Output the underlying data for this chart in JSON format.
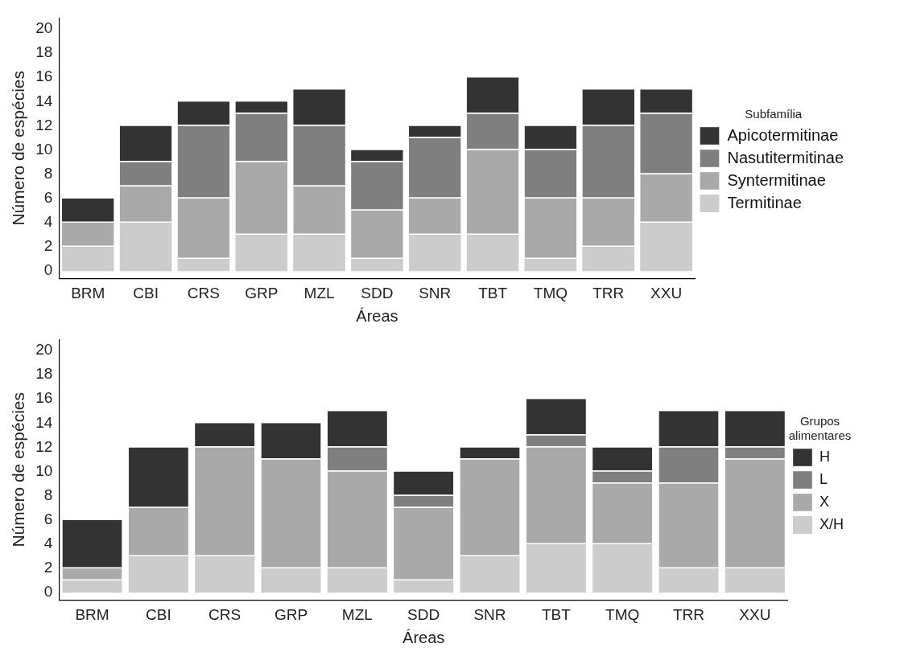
{
  "chart_data": [
    {
      "type": "bar",
      "stacked": true,
      "xlabel": "Áreas",
      "ylabel": "Número de espécies",
      "legend_title": "Subfamília",
      "legend": "right",
      "grid": false,
      "categories": [
        "BRM",
        "CBI",
        "CRS",
        "GRP",
        "MZL",
        "SDD",
        "SNR",
        "TBT",
        "TMQ",
        "TRR",
        "XXU"
      ],
      "ylim": [
        -0.6,
        20.9
      ],
      "yticks": [
        0,
        2,
        4,
        6,
        8,
        10,
        12,
        14,
        16,
        18,
        20
      ],
      "series": [
        {
          "name": "Termitinae",
          "color": "#cccccc",
          "values": [
            2,
            4,
            1,
            3,
            3,
            1,
            3,
            3,
            1,
            2,
            4
          ]
        },
        {
          "name": "Syntermitinae",
          "color": "#a9a9a9",
          "values": [
            2,
            3,
            5,
            6,
            4,
            4,
            3,
            7,
            5,
            4,
            4
          ]
        },
        {
          "name": "Nasutitermitinae",
          "color": "#7f7f7f",
          "values": [
            0,
            2,
            6,
            4,
            5,
            4,
            5,
            3,
            4,
            6,
            5
          ]
        },
        {
          "name": "Apicotermitinae",
          "color": "#333333",
          "values": [
            2,
            3,
            2,
            1,
            3,
            1,
            1,
            3,
            2,
            3,
            2
          ]
        }
      ]
    },
    {
      "type": "bar",
      "stacked": true,
      "xlabel": "Áreas",
      "ylabel": "Número de espécies",
      "legend_title": "Grupos alimentares",
      "legend": "right",
      "grid": false,
      "categories": [
        "BRM",
        "CBI",
        "CRS",
        "GRP",
        "MZL",
        "SDD",
        "SNR",
        "TBT",
        "TMQ",
        "TRR",
        "XXU"
      ],
      "ylim": [
        -0.6,
        20.9
      ],
      "yticks": [
        0,
        2,
        4,
        6,
        8,
        10,
        12,
        14,
        16,
        18,
        20
      ],
      "series": [
        {
          "name": "X/H",
          "color": "#cccccc",
          "values": [
            1,
            3,
            3,
            2,
            2,
            1,
            3,
            4,
            4,
            2,
            2
          ]
        },
        {
          "name": "X",
          "color": "#a9a9a9",
          "values": [
            1,
            4,
            9,
            9,
            8,
            6,
            8,
            8,
            5,
            7,
            9
          ]
        },
        {
          "name": "L",
          "color": "#7f7f7f",
          "values": [
            0,
            0,
            0,
            0,
            2,
            1,
            0,
            1,
            1,
            3,
            1
          ]
        },
        {
          "name": "H",
          "color": "#333333",
          "values": [
            4,
            5,
            2,
            3,
            3,
            2,
            1,
            3,
            2,
            3,
            3
          ]
        }
      ]
    }
  ]
}
